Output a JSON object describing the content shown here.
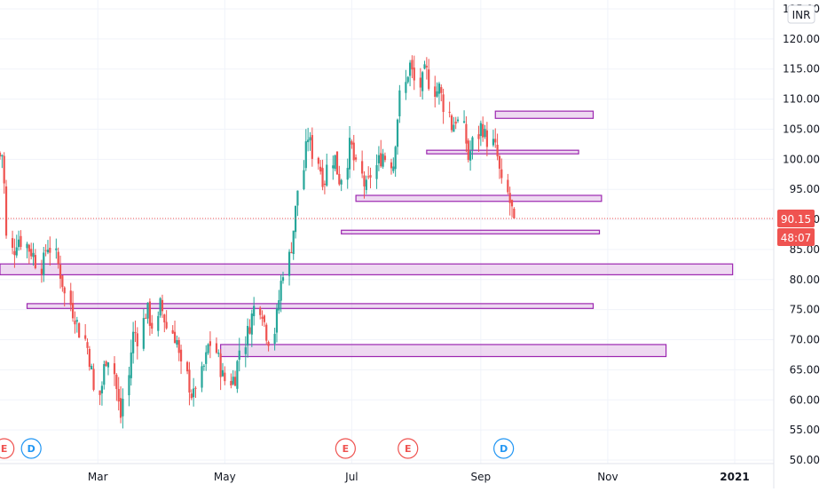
{
  "chart_data": {
    "type": "candlestick",
    "currency": "INR",
    "y_ticks": [
      "125.00",
      "120.00",
      "115.00",
      "110.00",
      "105.00",
      "100.00",
      "95.00",
      "90.00",
      "85.00",
      "80.00",
      "75.00",
      "70.00",
      "65.00",
      "60.00",
      "55.00",
      "50.00"
    ],
    "ylim": [
      49,
      126
    ],
    "x_tick_labels": [
      {
        "label": "Mar",
        "date": "2020-03-01"
      },
      {
        "label": "May",
        "date": "2020-05-01"
      },
      {
        "label": "Jul",
        "date": "2020-07-01"
      },
      {
        "label": "Sep",
        "date": "2020-09-01"
      },
      {
        "label": "Nov",
        "date": "2020-11-01"
      },
      {
        "label": "2021",
        "date": "2021-01-01",
        "bold": true
      }
    ],
    "last_price": {
      "value": 90.15,
      "label": "90.15",
      "countdown": "48:07"
    },
    "candle_colors": {
      "up": "#26a69a",
      "down": "#ef5350"
    },
    "zones": [
      {
        "start": "2020-09-08",
        "end": "2020-10-25",
        "low": 106.8,
        "high": 108.0
      },
      {
        "start": "2020-08-06",
        "end": "2020-10-18",
        "low": 100.9,
        "high": 101.5
      },
      {
        "start": "2020-07-03",
        "end": "2020-10-29",
        "low": 93.0,
        "high": 94.0
      },
      {
        "start": "2020-06-26",
        "end": "2020-10-28",
        "low": 87.6,
        "high": 88.2
      },
      {
        "start": "2020-01-14",
        "end": "2020-12-31",
        "low": 80.8,
        "high": 82.6
      },
      {
        "start": "2020-01-27",
        "end": "2020-10-25",
        "low": 75.2,
        "high": 76.0
      },
      {
        "start": "2020-04-29",
        "end": "2020-11-29",
        "low": 67.2,
        "high": 69.2
      }
    ],
    "events": [
      {
        "type": "E",
        "date": "2020-01-16",
        "color": "#ef5350"
      },
      {
        "type": "D",
        "date": "2020-01-29",
        "color": "#2196f3"
      },
      {
        "type": "E",
        "date": "2020-06-28",
        "color": "#ef5350"
      },
      {
        "type": "E",
        "date": "2020-07-28",
        "color": "#ef5350"
      },
      {
        "type": "D",
        "date": "2020-09-12",
        "color": "#2196f3"
      }
    ],
    "close_series": {
      "start_date": "2020-01-14",
      "end_date": "2020-09-17",
      "closes": [
        100.5,
        101.0,
        87.0,
        84.0,
        86.5,
        87.0,
        86.0,
        85.0,
        84.5,
        83.0,
        82.0,
        85.0,
        86.0,
        84.0,
        82.0,
        80.0,
        77.0,
        75.0,
        74.0,
        72.0,
        70.0,
        68.0,
        65.0,
        60.0,
        62.0,
        66.0,
        68.0,
        64.0,
        60.0,
        57.0,
        62.0,
        68.0,
        72.0,
        70.0,
        74.0,
        75.0,
        73.0,
        72.0,
        76.0,
        74.0,
        72.0,
        71.0,
        70.0,
        66.0,
        64.0,
        62.0,
        60.0,
        63.0,
        65.0,
        67.0,
        70.0,
        68.0,
        66.0,
        64.0,
        63.0,
        63.5,
        64.0,
        68.0,
        70.0,
        72.0,
        74.0,
        76.0,
        75.0,
        72.0,
        70.0,
        72.0,
        76.0,
        80.0,
        83.0,
        86.0,
        90.0,
        95.0,
        100.0,
        104.0,
        102.0,
        100.0,
        98.0,
        96.0,
        99.0,
        101.0,
        98.0,
        96.0,
        100.0,
        103.0,
        100.0,
        98.0,
        96.0,
        95.0,
        97.0,
        99.0,
        100.0,
        101.0,
        100.0,
        99.0,
        105.0,
        110.0,
        113.0,
        116.0,
        114.0,
        112.0,
        113.0,
        115.0,
        113.0,
        111.0,
        112.0,
        110.0,
        108.0,
        105.0,
        107.0,
        106.0,
        104.0,
        100.0,
        102.0,
        104.0,
        106.0,
        104.0,
        103.0,
        102.0,
        100.0,
        96.0,
        94.0,
        92.0,
        90.15
      ]
    }
  }
}
